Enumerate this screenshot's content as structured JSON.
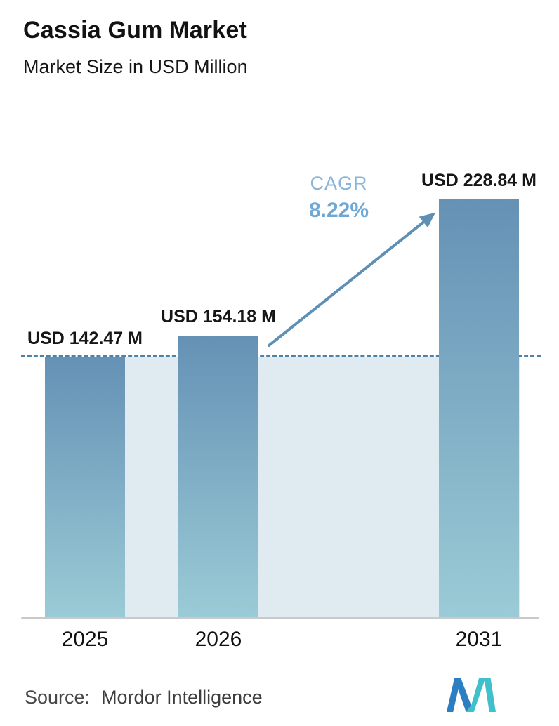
{
  "chart_data": {
    "type": "bar",
    "title": "Cassia Gum Market",
    "subtitle": "Market Size in USD Million",
    "unit": "USD Million",
    "categories": [
      "2025",
      "2026",
      "2031"
    ],
    "values": [
      142.47,
      154.18,
      228.84
    ],
    "value_labels": [
      "USD 142.47 M",
      "USD 154.18 M",
      "USD 228.84 M"
    ],
    "annotations": {
      "cagr_label": "CAGR",
      "cagr_value": "8.22%",
      "baseline_dashed_at": 142.47,
      "arrow_from": "2026",
      "arrow_to": "2031"
    },
    "ylim": [
      0,
      228.84
    ],
    "grid": "off",
    "legend": "none",
    "colors": {
      "bar_top": "#6591b5",
      "bar_bottom": "#9bcbd6",
      "band": "#dfeaf1",
      "dashed_line": "#4e81a7",
      "arrow": "#5e90b6",
      "cagr_label_color": "#8ab5da",
      "cagr_value_color": "#6fa8d4",
      "axis": "#c9c9c9",
      "logo_blue": "#2c7ec2",
      "logo_teal": "#3fc0ca"
    }
  },
  "footer": {
    "source_label": "Source:",
    "source_name": "Mordor Intelligence"
  }
}
